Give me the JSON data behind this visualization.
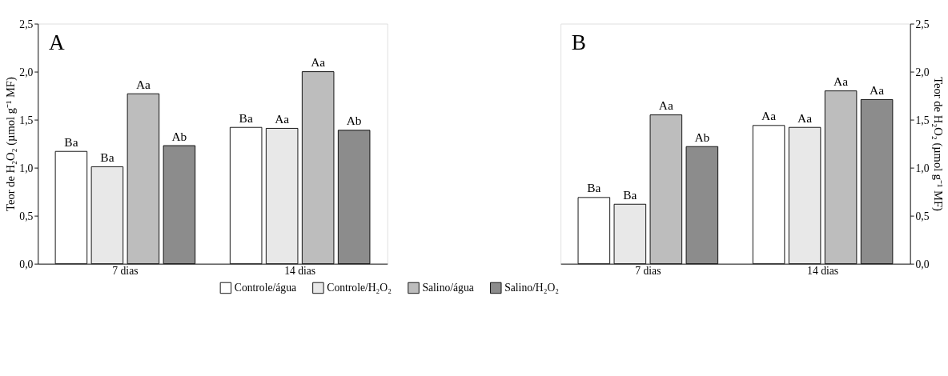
{
  "chart_data": [
    {
      "type": "bar",
      "categories": [
        "7 dias",
        "14 dias"
      ],
      "ylabel": "Teor de H₂O₂ (µmol g⁻¹ MF)",
      "ylim": [
        0,
        2.5
      ],
      "yticks": [
        {
          "value": 0,
          "label": "0,0"
        },
        {
          "value": 0.5,
          "label": "0,5"
        },
        {
          "value": 1,
          "label": "1,0"
        },
        {
          "value": 1.5,
          "label": "1,5"
        },
        {
          "value": 2,
          "label": "2,0"
        },
        {
          "value": 2.5,
          "label": "2,5"
        }
      ],
      "grid": false,
      "legend": "bottom",
      "annotations": [
        "A"
      ],
      "series": [
        {
          "name": "Controle/água",
          "color": "#ffffff",
          "values": [
            1.17,
            1.42
          ],
          "value_labels": [
            "Ba",
            "Ba"
          ]
        },
        {
          "name": "Controle/H₂O₂",
          "color": "#e8e8e8",
          "values": [
            1.01,
            1.41
          ],
          "value_labels": [
            "Ba",
            "Aa"
          ]
        },
        {
          "name": "Salino/água",
          "color": "#bdbdbd",
          "values": [
            1.77,
            2.0
          ],
          "value_labels": [
            "Aa",
            "Aa"
          ]
        },
        {
          "name": "Salino/H₂O₂",
          "color": "#8c8c8c",
          "values": [
            1.23,
            1.39
          ],
          "value_labels": [
            "Ab",
            "Ab"
          ]
        }
      ]
    },
    {
      "type": "bar",
      "categories": [
        "7 dias",
        "14 dias"
      ],
      "y2label": "Teor de H₂O₂ (µmol g⁻¹ MF)",
      "y2lim": [
        0,
        2.5
      ],
      "y2ticks": [
        {
          "value": 0,
          "label": "0,0"
        },
        {
          "value": 0.5,
          "label": "0,5"
        },
        {
          "value": 1,
          "label": "1,0"
        },
        {
          "value": 1.5,
          "label": "1,5"
        },
        {
          "value": 2,
          "label": "2,0"
        },
        {
          "value": 2.5,
          "label": "2,5"
        }
      ],
      "grid": false,
      "annotations": [
        "B"
      ],
      "series": [
        {
          "name": "Controle/água",
          "color": "#ffffff",
          "axis": "y2",
          "values": [
            0.69,
            1.44
          ],
          "value_labels": [
            "Ba",
            "Aa"
          ]
        },
        {
          "name": "Controle/H₂O₂",
          "color": "#e8e8e8",
          "axis": "y2",
          "values": [
            0.62,
            1.42
          ],
          "value_labels": [
            "Ba",
            "Aa"
          ]
        },
        {
          "name": "Salino/água",
          "color": "#bdbdbd",
          "axis": "y2",
          "values": [
            1.55,
            1.8
          ],
          "value_labels": [
            "Aa",
            "Aa"
          ]
        },
        {
          "name": "Salino/H₂O₂",
          "color": "#8c8c8c",
          "axis": "y2",
          "values": [
            1.22,
            1.71
          ],
          "value_labels": [
            "Ab",
            "Aa"
          ]
        }
      ]
    }
  ]
}
